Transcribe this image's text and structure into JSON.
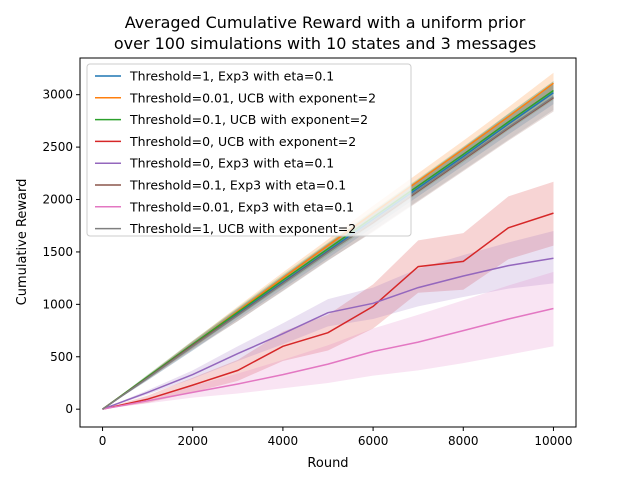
{
  "chart_data": {
    "type": "line",
    "title_lines": [
      "Averaged Cumulative Reward with a uniform prior",
      "over 100 simulations with 10 states and 3 messages"
    ],
    "xlabel": "Round",
    "ylabel": "Cumulative Reward",
    "xlim": [
      -500,
      10500
    ],
    "ylim": [
      -170,
      3350
    ],
    "xticks": [
      0,
      2000,
      4000,
      6000,
      8000,
      10000
    ],
    "yticks": [
      0,
      500,
      1000,
      1500,
      2000,
      2500,
      3000
    ],
    "grid": false,
    "legend_position": "upper-left",
    "x": [
      0,
      1000,
      2000,
      3000,
      4000,
      5000,
      6000,
      7000,
      8000,
      9000,
      10000
    ],
    "series": [
      {
        "name": "Threshold=1, Exp3 with eta=0.1",
        "color": "#1f77b4",
        "values": [
          0,
          300,
          600,
          910,
          1210,
          1510,
          1810,
          2110,
          2410,
          2720,
          3020
        ],
        "lower": [
          0,
          275,
          560,
          860,
          1150,
          1440,
          1735,
          2030,
          2325,
          2620,
          2910
        ],
        "upper": [
          0,
          325,
          640,
          960,
          1270,
          1580,
          1885,
          2190,
          2495,
          2820,
          3130
        ]
      },
      {
        "name": "Threshold=0.01, UCB with exponent=2",
        "color": "#ff7f0e",
        "values": [
          0,
          305,
          615,
          935,
          1250,
          1560,
          1870,
          2175,
          2480,
          2790,
          3110
        ],
        "lower": [
          0,
          285,
          580,
          890,
          1195,
          1500,
          1800,
          2100,
          2400,
          2700,
          3010
        ],
        "upper": [
          0,
          325,
          650,
          980,
          1305,
          1620,
          1940,
          2250,
          2560,
          2880,
          3210
        ]
      },
      {
        "name": "Threshold=0.1, UCB with exponent=2",
        "color": "#2ca02c",
        "values": [
          0,
          310,
          620,
          925,
          1230,
          1530,
          1830,
          2130,
          2430,
          2740,
          3040
        ],
        "lower": [
          0,
          290,
          585,
          880,
          1175,
          1470,
          1765,
          2060,
          2355,
          2660,
          2950
        ],
        "upper": [
          0,
          330,
          655,
          970,
          1285,
          1590,
          1895,
          2200,
          2505,
          2820,
          3130
        ]
      },
      {
        "name": "Threshold=0, UCB with exponent=2",
        "color": "#d62728",
        "values": [
          0,
          95,
          230,
          370,
          600,
          730,
          980,
          1360,
          1410,
          1730,
          1870
        ],
        "lower": [
          0,
          60,
          160,
          270,
          460,
          560,
          770,
          1110,
          1140,
          1430,
          1560
        ],
        "upper": [
          0,
          130,
          300,
          470,
          740,
          900,
          1190,
          1610,
          1680,
          2030,
          2170
        ]
      },
      {
        "name": "Threshold=0, Exp3 with eta=0.1",
        "color": "#9467bd",
        "values": [
          0,
          160,
          330,
          530,
          720,
          920,
          1010,
          1160,
          1270,
          1370,
          1440
        ],
        "lower": [
          0,
          140,
          290,
          460,
          620,
          790,
          860,
          980,
          1070,
          1150,
          1200
        ],
        "upper": [
          0,
          180,
          370,
          600,
          820,
          1050,
          1160,
          1340,
          1470,
          1590,
          1700
        ]
      },
      {
        "name": "Threshold=0.1, Exp3 with eta=0.1",
        "color": "#8c564b",
        "values": [
          0,
          300,
          610,
          900,
          1200,
          1500,
          1780,
          2080,
          2380,
          2680,
          2970
        ],
        "lower": [
          0,
          280,
          570,
          840,
          1130,
          1420,
          1690,
          1980,
          2270,
          2560,
          2840
        ],
        "upper": [
          0,
          320,
          650,
          960,
          1270,
          1580,
          1870,
          2180,
          2490,
          2800,
          3100
        ]
      },
      {
        "name": "Threshold=0.01, Exp3 with eta=0.1",
        "color": "#e377c2",
        "values": [
          0,
          80,
          160,
          240,
          330,
          430,
          550,
          640,
          750,
          860,
          960
        ],
        "lower": [
          0,
          55,
          110,
          150,
          200,
          250,
          320,
          370,
          440,
          520,
          600
        ],
        "upper": [
          0,
          110,
          220,
          340,
          470,
          610,
          770,
          900,
          1040,
          1180,
          1310
        ]
      },
      {
        "name": "Threshold=1, UCB with exponent=2",
        "color": "#7f7f7f",
        "values": [
          0,
          295,
          600,
          895,
          1195,
          1495,
          1790,
          2090,
          2390,
          2690,
          2980
        ],
        "lower": [
          0,
          275,
          560,
          840,
          1125,
          1415,
          1700,
          1990,
          2280,
          2570,
          2855
        ],
        "upper": [
          0,
          315,
          640,
          950,
          1265,
          1575,
          1880,
          2190,
          2500,
          2810,
          3105
        ]
      }
    ]
  }
}
